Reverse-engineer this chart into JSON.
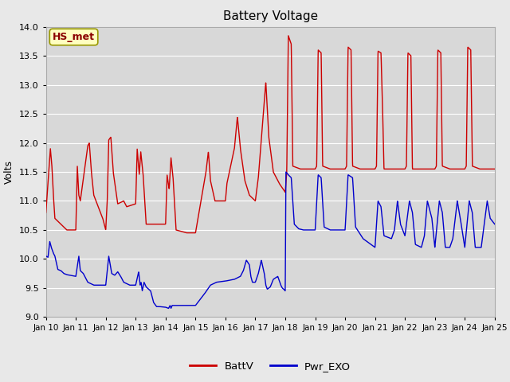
{
  "title": "Battery Voltage",
  "ylabel": "Volts",
  "ylim": [
    9.0,
    14.0
  ],
  "yticks": [
    9.0,
    9.5,
    10.0,
    10.5,
    11.0,
    11.5,
    12.0,
    12.5,
    13.0,
    13.5,
    14.0
  ],
  "x_labels": [
    "Jan 10",
    "Jan 11",
    "Jan 12",
    "Jan 13",
    "Jan 14",
    "Jan 15",
    "Jan 16",
    "Jan 17",
    "Jan 18",
    "Jan 19",
    "Jan 20",
    "Jan 21",
    "Jan 22",
    "Jan 23",
    "Jan 24",
    "Jan 25"
  ],
  "background_color": "#e8e8e8",
  "plot_bg_color": "#d8d8d8",
  "grid_color": "#ffffff",
  "line_color_battv": "#cc0000",
  "line_color_exo": "#0000cc",
  "legend_battv": "BattV",
  "legend_exo": "Pwr_EXO",
  "annotation_text": "HS_met",
  "annotation_color": "#8b0000",
  "annotation_bg": "#ffffc0",
  "annotation_border": "#999900"
}
